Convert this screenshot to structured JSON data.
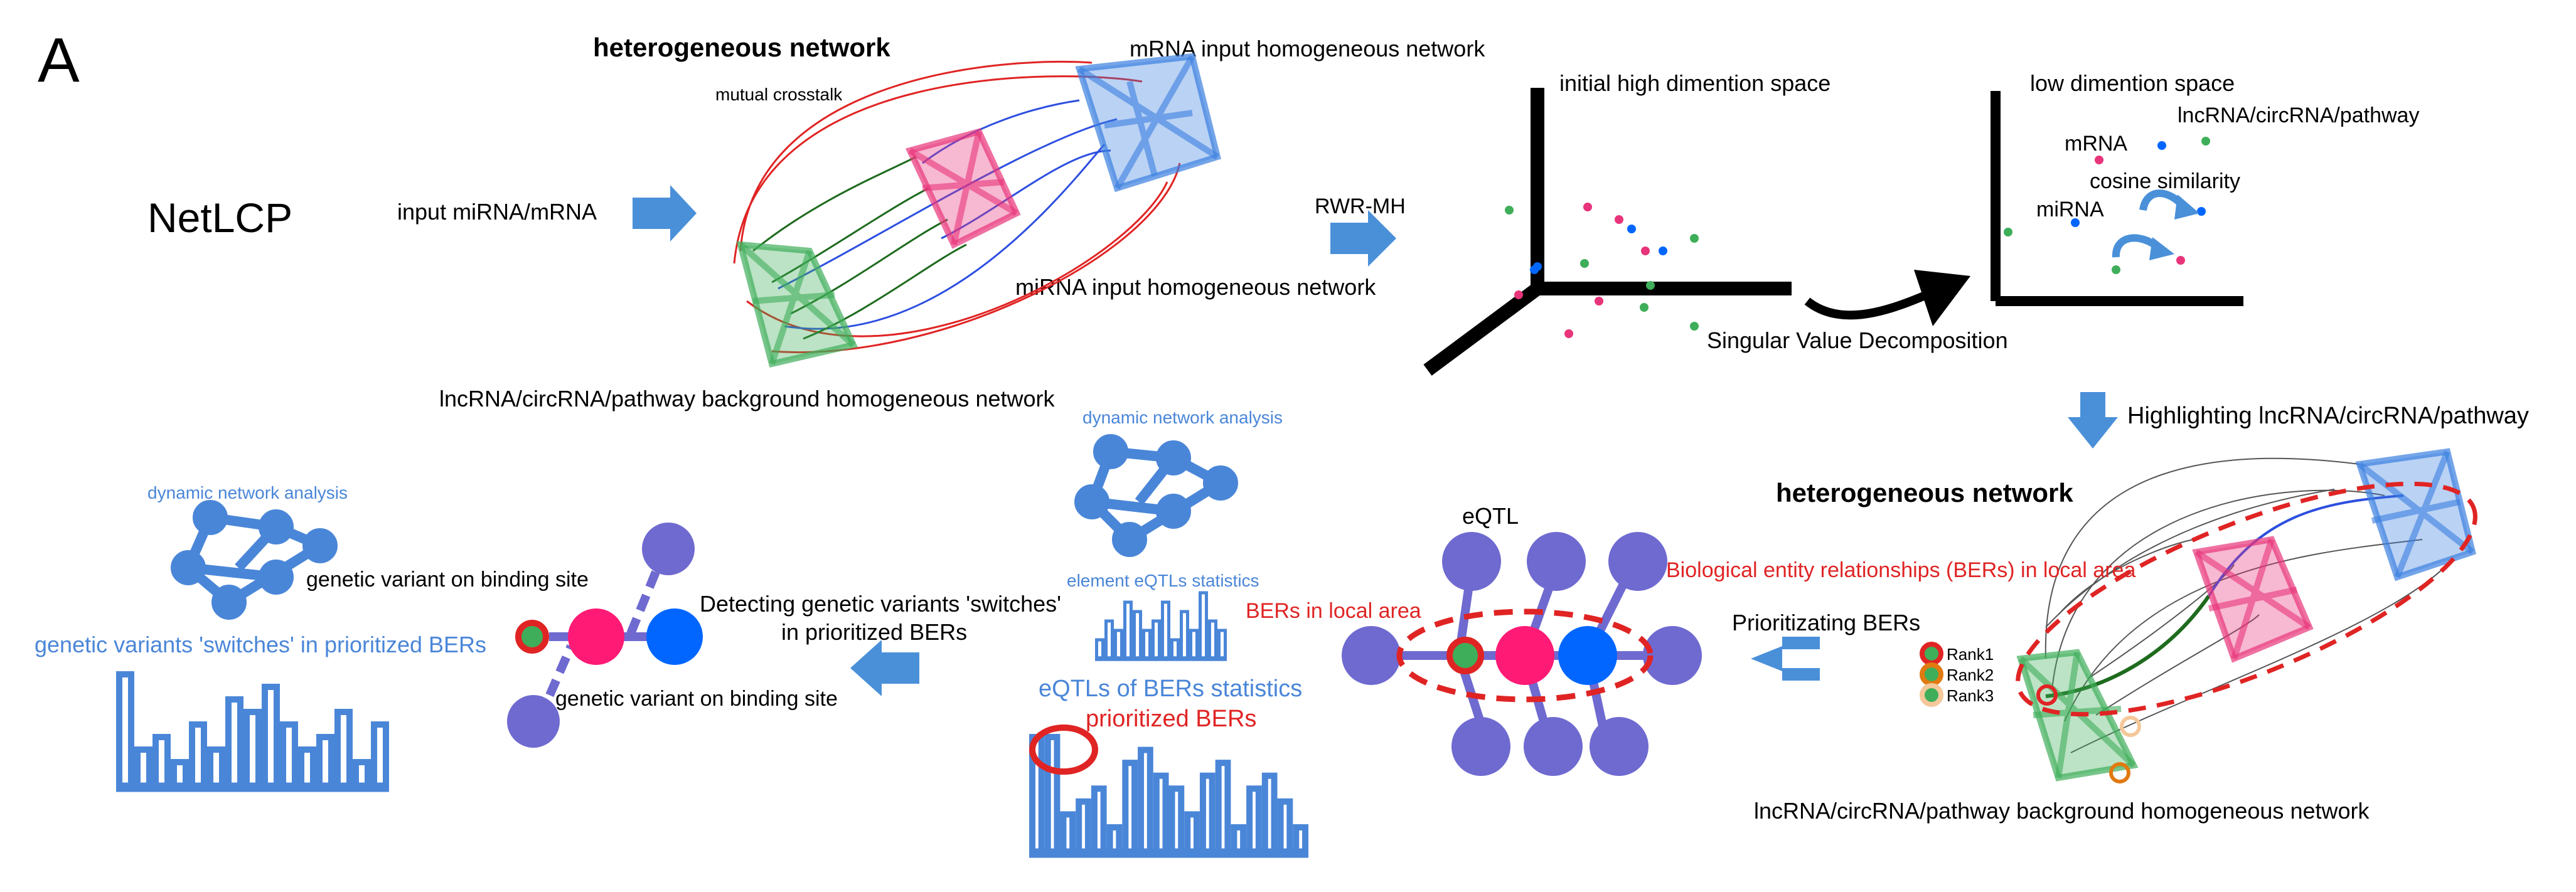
{
  "panel_label": "A",
  "tool_name": "NetLCP",
  "colors": {
    "blue_arrow": "#4a90d9",
    "mrna_net": "#3a7fe0",
    "mirna_net": "#e8347a",
    "lnc_net": "#3fae5a",
    "red": "#e02424",
    "dark_green": "#1e6b1e",
    "node_purple": "#6f6ad0",
    "node_pink": "#ff1a75",
    "node_blue": "#0066ff",
    "bar_blue": "#4a86d8",
    "text_blue": "#4a86d8",
    "text_red": "#e02424",
    "black": "#000000"
  },
  "top": {
    "input_label": "input miRNA/mRNA",
    "hetero_title": "heterogeneous network",
    "mutual_crosstalk": "mutual crosstalk",
    "mrna_network": "mRNA input homogeneous network",
    "mirna_network": "miRNA input homogeneous network",
    "lnc_network": "lncRNA/circRNA/pathway background homogeneous network",
    "rwr_label": "RWR-MH",
    "high_dim": "initial high dimention space",
    "svd": "Singular Value Decomposition",
    "low_dim": "low dimention space",
    "mrna": "mRNA",
    "lnc_point": "lncRNA/circRNA/pathway",
    "cosine": "cosine similarity",
    "mirna": "miRNA"
  },
  "right": {
    "highlighting": "Highlighting lncRNA/circRNA/pathway",
    "hetero_title": "heterogeneous network",
    "bers_local": "Biological entity relationships (BERs) in local area",
    "rank1": "Rank1",
    "rank2": "Rank2",
    "rank3": "Rank3",
    "lnc_network": "lncRNA/circRNA/pathway background homogeneous network"
  },
  "middle": {
    "prioritizing": "Prioritizating BERs",
    "eqtl": "eQTL",
    "bers_local_short": "BERs in local area",
    "dynamic": "dynamic network analysis",
    "element_stats": "element eQTLs statistics",
    "eqtls_bers_stats": "eQTLs of BERs statistics",
    "prioritized_bers": "prioritized BERs"
  },
  "left": {
    "detecting_line1": "Detecting genetic variants 'switches'",
    "detecting_line2": "in prioritized BERs",
    "variant_top": "genetic variant on binding site",
    "variant_bottom": "genetic variant on binding site",
    "dynamic": "dynamic network analysis",
    "switches": "genetic variants 'switches' in prioritized BERs"
  },
  "scatter_high": [
    {
      "c": "green"
    },
    {
      "c": "pink"
    },
    {
      "c": "green"
    },
    {
      "c": "blue"
    },
    {
      "c": "pink"
    },
    {
      "c": "green"
    },
    {
      "c": "blue"
    },
    {
      "c": "pink"
    },
    {
      "c": "green"
    },
    {
      "c": "blue"
    },
    {
      "c": "pink"
    },
    {
      "c": "green"
    },
    {
      "c": "pink"
    },
    {
      "c": "blue"
    },
    {
      "c": "green"
    },
    {
      "c": "pink"
    }
  ],
  "bars_left": [
    9,
    3,
    4,
    2,
    5,
    3,
    7,
    6,
    8,
    5,
    3,
    4,
    6,
    2,
    5
  ],
  "bars_mid_small": [
    2,
    4,
    3,
    6,
    5,
    3,
    4,
    6,
    2,
    5,
    3,
    7,
    4,
    3
  ],
  "bars_mid_big": [
    9,
    9,
    3,
    4,
    5,
    2,
    7,
    8,
    6,
    5,
    3,
    6,
    7,
    2,
    5,
    6,
    4,
    2
  ]
}
